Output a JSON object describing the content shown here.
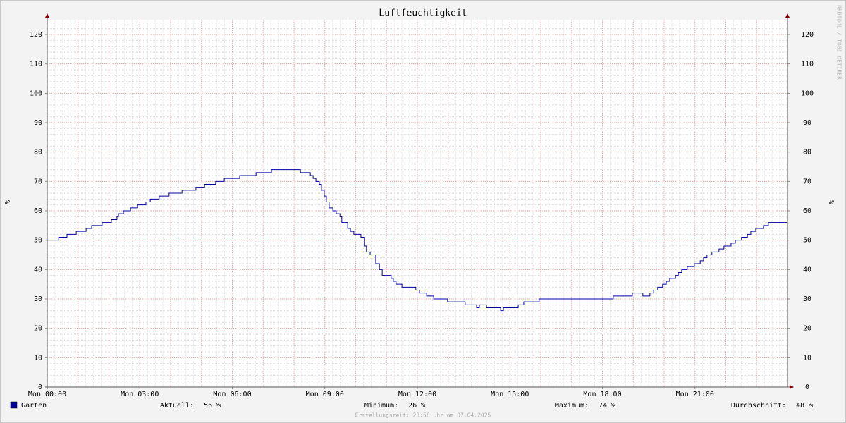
{
  "chart_data": {
    "type": "line",
    "title": "Luftfeuchtigkeit",
    "y_label": "%",
    "watermark": "RRDTOOL / TOBI OETIKER",
    "footer": "Erstellungszeit: 23:58 Uhr am 07.04.2025",
    "step": true,
    "grid": true,
    "x_major_step": 1,
    "x_minor_step": 0.25,
    "y_minor_step": 2,
    "xlim": [
      0,
      24
    ],
    "ylim": [
      0,
      125
    ],
    "xticks": [
      {
        "value": 0,
        "label": "Mon 00:00"
      },
      {
        "value": 3,
        "label": "Mon 03:00"
      },
      {
        "value": 6,
        "label": "Mon 06:00"
      },
      {
        "value": 9,
        "label": "Mon 09:00"
      },
      {
        "value": 12,
        "label": "Mon 12:00"
      },
      {
        "value": 15,
        "label": "Mon 15:00"
      },
      {
        "value": 18,
        "label": "Mon 18:00"
      },
      {
        "value": 21,
        "label": "Mon 21:00"
      }
    ],
    "yticks": [
      0,
      10,
      20,
      30,
      40,
      50,
      60,
      70,
      80,
      90,
      100,
      110,
      120
    ],
    "x": [
      0,
      0.37,
      0.64,
      0.94,
      1.26,
      1.44,
      1.78,
      2.08,
      2.26,
      2.31,
      2.47,
      2.7,
      2.93,
      3.2,
      3.34,
      3.63,
      3.95,
      4.37,
      4.82,
      5.1,
      5.46,
      5.74,
      6.24,
      6.77,
      7.27,
      8.21,
      8.53,
      8.62,
      8.71,
      8.82,
      8.89,
      8.98,
      9.05,
      9.14,
      9.26,
      9.37,
      9.49,
      9.55,
      9.74,
      9.83,
      9.94,
      10.17,
      10.29,
      10.35,
      10.47,
      10.65,
      10.77,
      10.86,
      11.15,
      11.22,
      11.31,
      11.5,
      11.95,
      12.07,
      12.3,
      12.53,
      12.98,
      13.55,
      13.92,
      14.01,
      14.24,
      14.7,
      14.79,
      15.27,
      15.45,
      15.95,
      18.35,
      18.97,
      19.31,
      19.54,
      19.66,
      19.79,
      19.95,
      20.07,
      20.18,
      20.37,
      20.46,
      20.57,
      20.75,
      20.98,
      21.17,
      21.28,
      21.39,
      21.55,
      21.78,
      21.94,
      22.17,
      22.31,
      22.51,
      22.7,
      22.81,
      22.97,
      23.22,
      23.38,
      24
    ],
    "series": [
      {
        "name": "Garten",
        "color": "#0000a0",
        "values": [
          50,
          51,
          52,
          53,
          54,
          55,
          56,
          57,
          58,
          59,
          60,
          61,
          62,
          63,
          64,
          65,
          66,
          67,
          68,
          69,
          70,
          71,
          72,
          73,
          74,
          73,
          72,
          71,
          70,
          69,
          67,
          65,
          63,
          61,
          60,
          59,
          58,
          56,
          54,
          53,
          52,
          51,
          48,
          46,
          45,
          42,
          40,
          38,
          37,
          36,
          35,
          34,
          33,
          32,
          31,
          30,
          29,
          28,
          27,
          28,
          27,
          26,
          27,
          28,
          29,
          30,
          31,
          32,
          31,
          32,
          33,
          34,
          35,
          36,
          37,
          38,
          39,
          40,
          41,
          42,
          43,
          44,
          45,
          46,
          47,
          48,
          49,
          50,
          51,
          52,
          53,
          54,
          55,
          56,
          56
        ]
      }
    ],
    "stats": [
      {
        "label": "Aktuell:",
        "value": 56,
        "unit": "%"
      },
      {
        "label": "Minimum:",
        "value": 26,
        "unit": "%"
      },
      {
        "label": "Maximum:",
        "value": 74,
        "unit": "%"
      },
      {
        "label": "Durchschnitt:",
        "value": 48,
        "unit": "%"
      }
    ]
  }
}
